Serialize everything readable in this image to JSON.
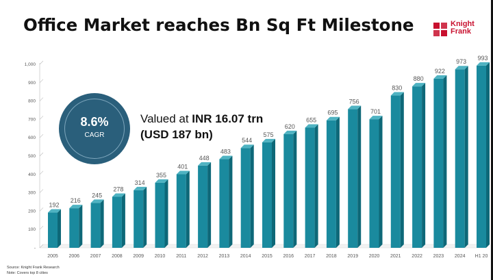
{
  "title": "Office Market reaches Bn Sq Ft Milestone",
  "logo": {
    "line1": "Knight",
    "line2": "Frank",
    "color": "#c8102e"
  },
  "cagr": {
    "value": "8.6%",
    "label": "CAGR"
  },
  "callout": {
    "prefix": "Valued at ",
    "value": "INR 16.07 trn",
    "sub": "(USD 187 bn)"
  },
  "footnotes": {
    "source": "Source: Knight Frank Research",
    "note": "Note: Covers top 8 cities"
  },
  "colors": {
    "bar": "#1a8a9e",
    "bar_side": "#0e6878",
    "circle": "#2a5f7b"
  },
  "chart_data": {
    "type": "bar",
    "categories": [
      "2005",
      "2006",
      "2007",
      "2008",
      "2009",
      "2010",
      "2011",
      "2012",
      "2013",
      "2014",
      "2015",
      "2016",
      "2017",
      "2018",
      "2019",
      "2020",
      "2021",
      "2022",
      "2023",
      "2024",
      "H1 20"
    ],
    "values": [
      192,
      216,
      245,
      278,
      314,
      355,
      401,
      448,
      483,
      544,
      575,
      620,
      655,
      695,
      756,
      701,
      830,
      880,
      922,
      973,
      993
    ],
    "value_labels": [
      "192",
      "216",
      "245",
      "278",
      "314",
      "355",
      "401",
      "448",
      "483",
      "544",
      "575",
      "620",
      "655",
      "695",
      "756",
      "701",
      "830",
      "880",
      "922",
      "973",
      "993"
    ],
    "yticks": [
      "-",
      "100",
      "200",
      "300",
      "400",
      "500",
      "600",
      "700",
      "800",
      "900",
      "1,000"
    ],
    "ylim": [
      0,
      1000
    ],
    "grid": false,
    "style": "3d"
  }
}
